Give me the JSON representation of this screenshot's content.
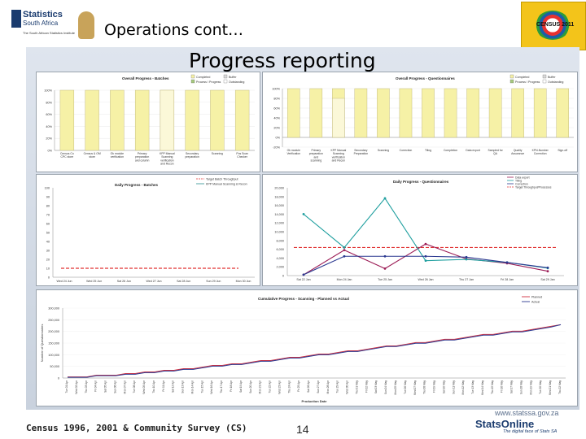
{
  "header": {
    "slide_title": "Operations cont…",
    "heading": "Progress reporting",
    "org_name": "Statistics",
    "org_sub": "South Africa",
    "org_tagline": "The South African Statistics Institute",
    "census_logo_text": "CENSUS 2011"
  },
  "charts": {
    "overall_batch": {
      "title": "Overall Progress - Batches",
      "legend": [
        "Completed",
        "Buffer",
        "Process / Progress",
        "Outstanding"
      ],
      "yticks": [
        "100%",
        "80%",
        "60%",
        "40%",
        "20%",
        "0%"
      ],
      "categories": [
        "Census Co CPC store",
        "Census & OM store",
        "Ok module verification",
        "Primary preparation and column",
        "KPP Manual Scanning verification and Recon",
        "Secondary preparation",
        "Scanning",
        "Pos Scan Checker"
      ],
      "completed": [
        100,
        100,
        100,
        100,
        100,
        100,
        100,
        100
      ],
      "buffer": [
        0,
        0,
        0,
        0,
        100,
        0,
        0,
        0
      ]
    },
    "overall_questionnaire": {
      "title": "Overall Progress - Questionnaires",
      "legend": [
        "Completed",
        "Buffer",
        "Process / Progress",
        "Outstanding"
      ],
      "yticks": [
        "100%",
        "80%",
        "60%",
        "40%",
        "20%",
        "0%",
        "-20%"
      ],
      "categories": [
        "Ok module Verification",
        "Primary preparation and scanning",
        "KPP Manual Scanning verification and Recon",
        "Secondary Preparation",
        "Scanning",
        "Correction",
        "Tiling",
        "Completion",
        "Data export",
        "Sampled for QA",
        "Quality Assurance",
        "KPN-Number Correction",
        "Sign-off"
      ],
      "completed": [
        100,
        100,
        100,
        100,
        100,
        100,
        100,
        100,
        100,
        100,
        100,
        100,
        100
      ],
      "buffer": [
        0,
        0,
        80,
        0,
        0,
        0,
        0,
        0,
        0,
        0,
        0,
        0,
        0
      ]
    },
    "daily_batch": {
      "title": "Daily Progress - Batches",
      "legend": [
        "Target Batch Throughput",
        "KPP Manual Scanning & Recon"
      ],
      "yticks": [
        "100",
        "90",
        "80",
        "70",
        "60",
        "50",
        "40",
        "30",
        "20",
        "10",
        "0"
      ],
      "xticks": [
        "Wed 24 Jun",
        "Wed 25 Jun",
        "Sat 26 Jun",
        "Wed 27 Jun",
        "Sat 28 Jun",
        "Sun 29 Jun",
        "Mon 30 Jun"
      ],
      "target": 10
    },
    "daily_questionnaire": {
      "title": "Daily Progress - Questionnaires",
      "legend": [
        "Data export",
        "Tiling",
        "Correction",
        "Target Throughput/Processes"
      ],
      "yticks": [
        "20,000",
        "18,000",
        "16,000",
        "14,000",
        "12,000",
        "10,000",
        "8,000",
        "6,000",
        "4,000",
        "2,000",
        "0"
      ],
      "xticks": [
        "Sat 22 Jan",
        "Mon 24 Jan",
        "Tue 25 Jan",
        "Wed 26 Jan",
        "Thu 27 Jan",
        "Fri 28 Jan",
        "Sat 29 Jan"
      ],
      "series": [
        {
          "name": "Data export",
          "color": "#9b1b55",
          "values": [
            200,
            5800,
            1600,
            7200,
            3800,
            2800,
            1000
          ]
        },
        {
          "name": "Tiling",
          "color": "#1f9f9f",
          "values": [
            14000,
            6400,
            17600,
            3400,
            3700,
            3000,
            1700
          ]
        },
        {
          "name": "Correction",
          "color": "#2b3990",
          "values": [
            200,
            4400,
            4400,
            4400,
            4200,
            3000,
            1800
          ]
        }
      ],
      "target": 6400
    },
    "cumulative": {
      "title": "Cumulative Progress - Scanning - Planned vs Actual",
      "legend": [
        "Planned",
        "Actual"
      ],
      "ylabel": "Number of Questionnaires",
      "xlabel": "Production Date",
      "yticks": [
        "300,000",
        "250,000",
        "200,000",
        "150,000",
        "100,000",
        "50,000",
        "0"
      ],
      "ymax": 300000,
      "xticks": [
        "Tue 01 Apr",
        "Wed 02 Apr",
        "Thu 03 Apr",
        "Fri 04 Apr",
        "Sat 05 Apr",
        "Sun 06 Apr",
        "Mon 07 Apr",
        "Tue 08 Apr",
        "Wed 09 Apr",
        "Thu 10 Apr",
        "Fri 11 Apr",
        "Sat 12 Apr",
        "Sun 13 Apr",
        "Mon 14 Apr",
        "Tue 15 Apr",
        "Wed 16 Apr",
        "Thu 17 Apr",
        "Fri 18 Apr",
        "Sat 19 Apr",
        "Sun 20 Apr",
        "Mon 21 Apr",
        "Tue 22 Apr",
        "Wed 23 Apr",
        "Thu 24 Apr",
        "Fri 25 Apr",
        "Sat 26 Apr",
        "Sun 27 Apr",
        "Mon 28 Apr",
        "Tue 29 Apr",
        "Wed 30 Apr",
        "Thu 01 May",
        "Fri 02 May",
        "Sat 03 May",
        "Sun 04 May",
        "Mon 05 May",
        "Tue 06 May",
        "Wed 07 May",
        "Thu 08 May",
        "Fri 09 May",
        "Sat 10 May",
        "Sun 11 May",
        "Mon 12 May",
        "Tue 13 May",
        "Wed 14 May",
        "Thu 15 May",
        "Fri 16 May",
        "Sat 17 May",
        "Sun 18 May",
        "Mon 19 May",
        "Tue 20 May",
        "Wed 21 May",
        "Thu 22 May"
      ],
      "planned": [
        5000,
        5000,
        5000,
        12000,
        12000,
        12000,
        19000,
        19000,
        26000,
        26000,
        33000,
        33000,
        40000,
        40000,
        47000,
        54000,
        54000,
        61000,
        61000,
        68000,
        75000,
        75000,
        82000,
        89000,
        89000,
        96000,
        103000,
        103000,
        110000,
        117000,
        117000,
        124000,
        131000,
        138000,
        138000,
        145000,
        152000,
        152000,
        159000,
        166000,
        166000,
        173000,
        180000,
        187000,
        187000,
        194000,
        201000,
        201000,
        208000,
        215000,
        222000,
        229000
      ],
      "actual": [
        3000,
        3000,
        3000,
        10000,
        10000,
        10000,
        16000,
        16000,
        23000,
        23000,
        30000,
        30000,
        37000,
        37000,
        44000,
        51000,
        51000,
        58000,
        58000,
        65000,
        72000,
        72000,
        79000,
        86000,
        86000,
        93000,
        100000,
        100000,
        107000,
        114000,
        114000,
        121000,
        128000,
        135000,
        135000,
        142000,
        149000,
        149000,
        156000,
        163000,
        163000,
        170000,
        177000,
        184000,
        184000,
        191000,
        198000,
        198000,
        205000,
        212000,
        219000,
        229000
      ]
    }
  },
  "footer": {
    "left": "Census 1996, 2001 & Community Survey (CS)",
    "page": "14",
    "url": "www.statssa.gov.za",
    "brand": "StatsOnline",
    "tagline": "The digital face of Stats SA"
  }
}
